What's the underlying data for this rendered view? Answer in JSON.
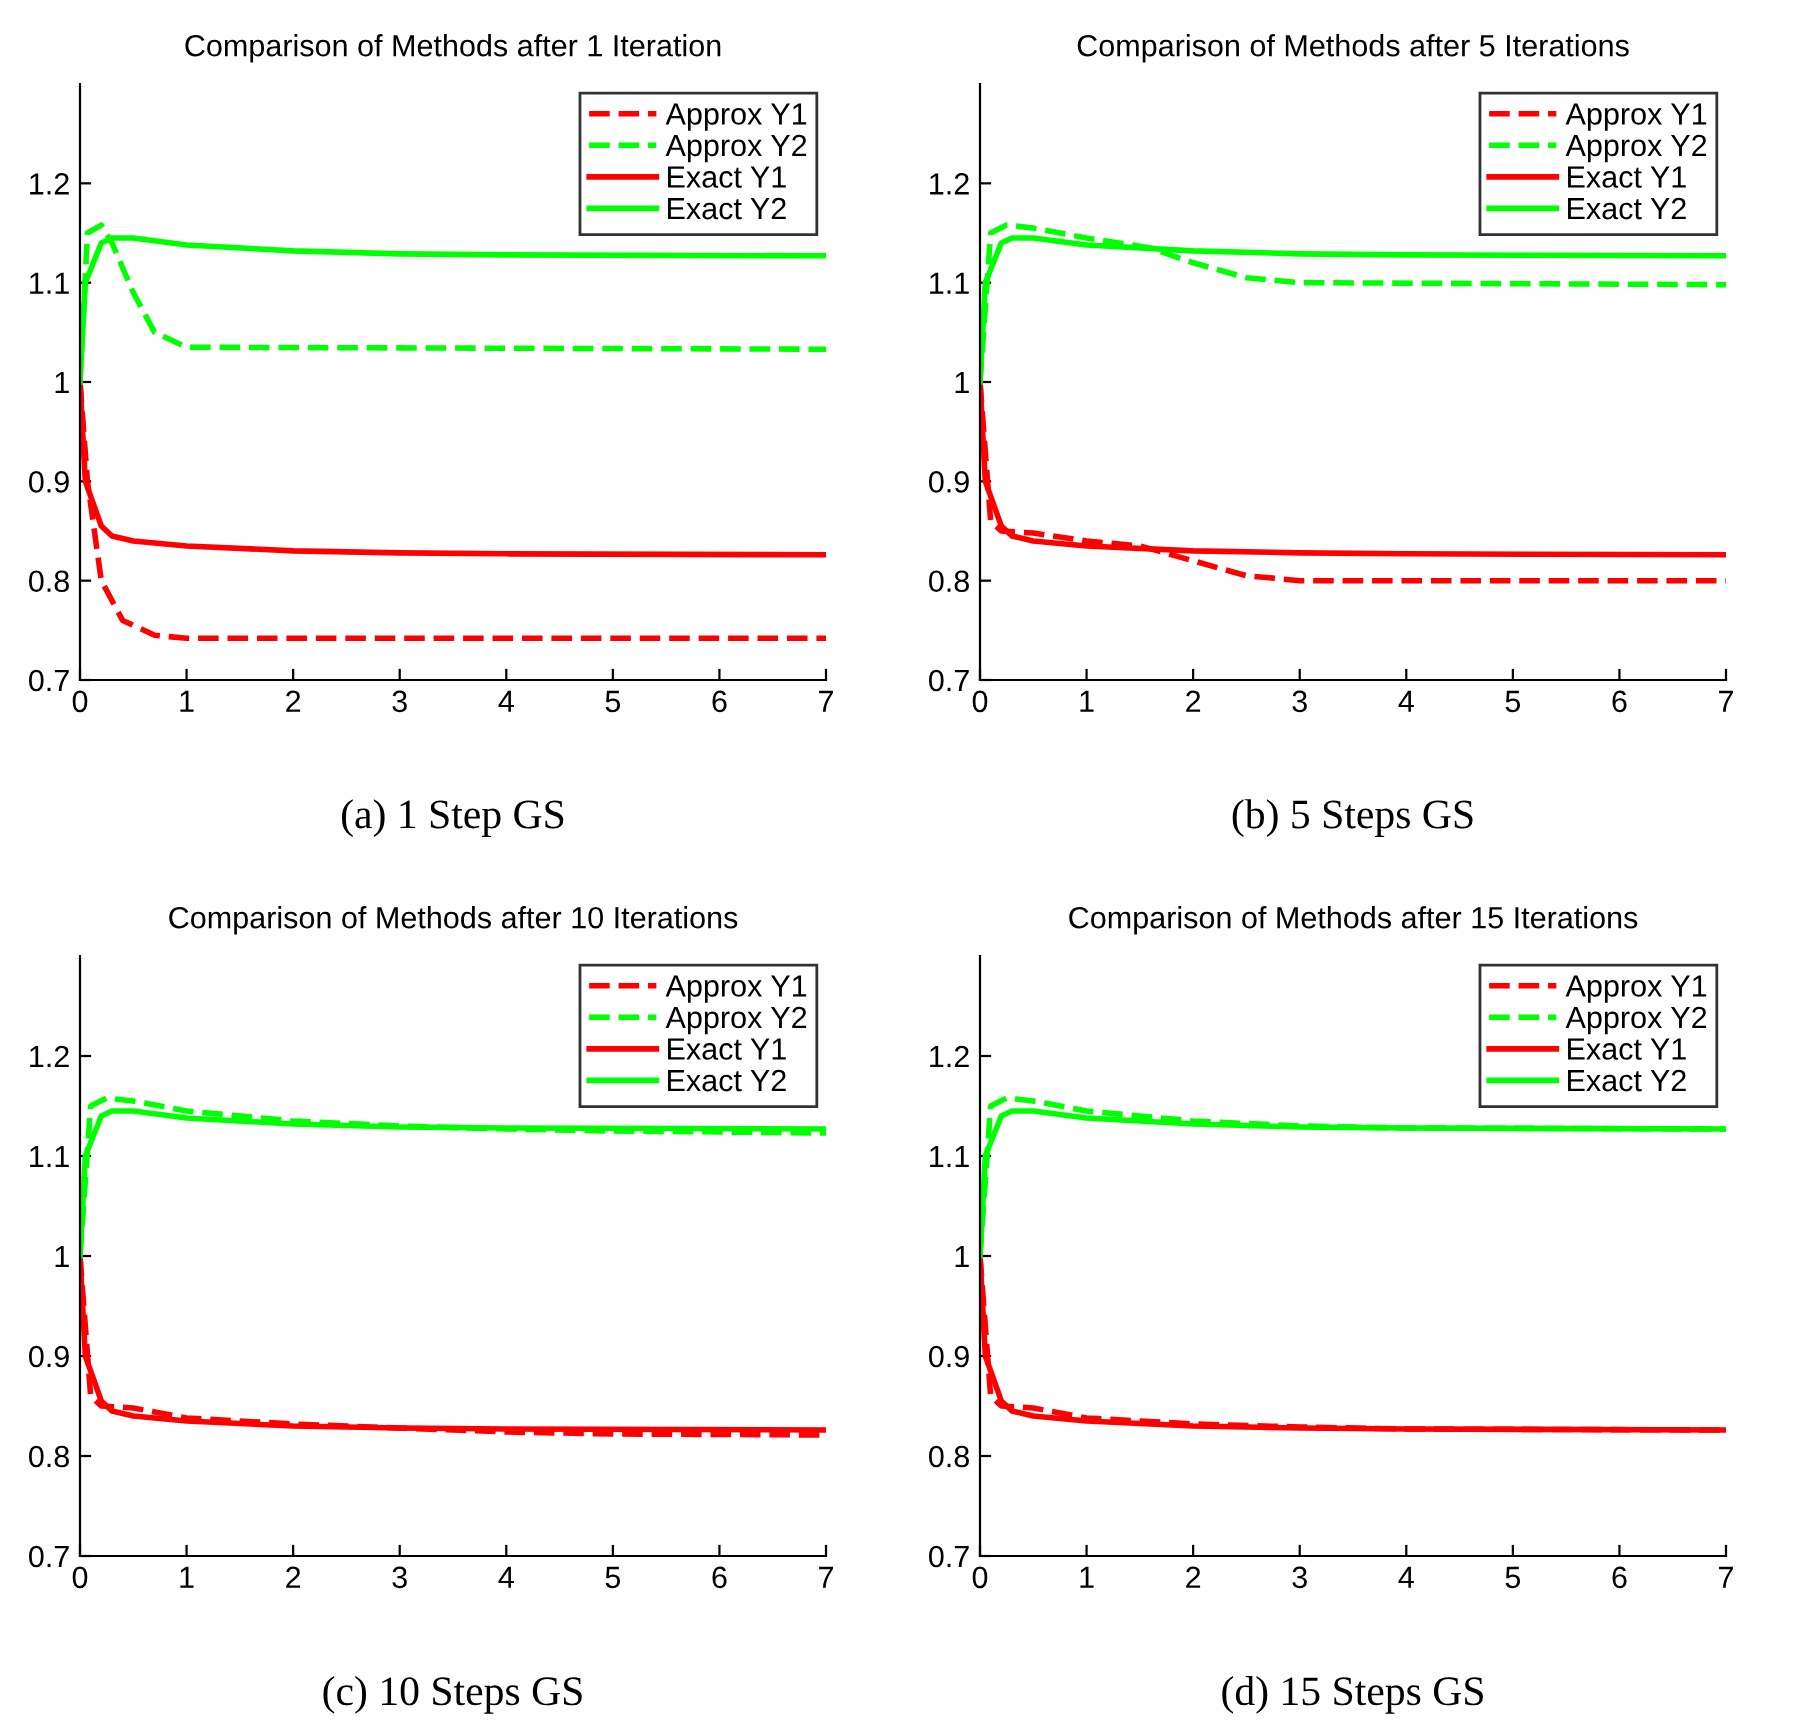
{
  "chart_data": [
    {
      "type": "line",
      "title": "Comparison of Methods after 1 Iteration",
      "annotations": [
        "(a) 1 Step GS"
      ],
      "xlim": [
        0,
        7
      ],
      "ylim": [
        0.7,
        1.3
      ],
      "xticks": [
        0,
        1,
        2,
        3,
        4,
        5,
        6,
        7
      ],
      "yticks": [
        0.7,
        0.8,
        0.9,
        1,
        1.1,
        1.2
      ],
      "legend": "top right",
      "grid": false,
      "series": [
        {
          "name": "Approx Y1",
          "color": "#ff0000",
          "line_style": "dashed",
          "x": [
            0,
            0.07,
            0.2,
            0.4,
            0.7,
            1,
            7
          ],
          "values": [
            1.0,
            0.9,
            0.8,
            0.76,
            0.745,
            0.742,
            0.742
          ]
        },
        {
          "name": "Approx Y2",
          "color": "#00ff00",
          "line_style": "dashed",
          "x": [
            0,
            0.07,
            0.2,
            0.3,
            0.5,
            0.7,
            1,
            7
          ],
          "values": [
            1.0,
            1.15,
            1.158,
            1.14,
            1.09,
            1.05,
            1.035,
            1.033
          ]
        },
        {
          "name": "Exact Y1",
          "color": "#ff0000",
          "line_style": "solid",
          "x": [
            0,
            0.05,
            0.2,
            0.3,
            0.5,
            1,
            2,
            3,
            4,
            7
          ],
          "values": [
            1.0,
            0.9,
            0.855,
            0.845,
            0.84,
            0.835,
            0.83,
            0.828,
            0.827,
            0.826
          ]
        },
        {
          "name": "Exact Y2",
          "color": "#00ff00",
          "line_style": "solid",
          "x": [
            0,
            0.05,
            0.2,
            0.3,
            0.5,
            1,
            2,
            3,
            4,
            7
          ],
          "values": [
            1.0,
            1.1,
            1.14,
            1.145,
            1.145,
            1.138,
            1.132,
            1.129,
            1.128,
            1.127
          ]
        }
      ]
    },
    {
      "type": "line",
      "title": "Comparison of Methods after 5 Iterations",
      "annotations": [
        "(b) 5 Steps GS"
      ],
      "xlim": [
        0,
        7
      ],
      "ylim": [
        0.7,
        1.3
      ],
      "xticks": [
        0,
        1,
        2,
        3,
        4,
        5,
        6,
        7
      ],
      "yticks": [
        0.7,
        0.8,
        0.9,
        1,
        1.1,
        1.2
      ],
      "legend": "top right",
      "grid": false,
      "series": [
        {
          "name": "Approx Y1",
          "color": "#ff0000",
          "line_style": "dashed",
          "x": [
            0,
            0.1,
            0.2,
            0.5,
            1,
            1.5,
            2,
            2.5,
            3,
            7
          ],
          "values": [
            1.0,
            0.86,
            0.85,
            0.848,
            0.84,
            0.835,
            0.82,
            0.805,
            0.8,
            0.8
          ]
        },
        {
          "name": "Approx Y2",
          "color": "#00ff00",
          "line_style": "dashed",
          "x": [
            0,
            0.1,
            0.25,
            0.5,
            1,
            1.6,
            2,
            2.5,
            3,
            7
          ],
          "values": [
            1.0,
            1.15,
            1.158,
            1.155,
            1.145,
            1.135,
            1.12,
            1.105,
            1.1,
            1.098
          ]
        },
        {
          "name": "Exact Y1",
          "color": "#ff0000",
          "line_style": "solid",
          "x": [
            0,
            0.05,
            0.2,
            0.3,
            0.5,
            1,
            2,
            3,
            4,
            7
          ],
          "values": [
            1.0,
            0.9,
            0.855,
            0.845,
            0.84,
            0.835,
            0.83,
            0.828,
            0.827,
            0.826
          ]
        },
        {
          "name": "Exact Y2",
          "color": "#00ff00",
          "line_style": "solid",
          "x": [
            0,
            0.05,
            0.2,
            0.3,
            0.5,
            1,
            2,
            3,
            4,
            7
          ],
          "values": [
            1.0,
            1.1,
            1.14,
            1.145,
            1.145,
            1.138,
            1.132,
            1.129,
            1.128,
            1.127
          ]
        }
      ]
    },
    {
      "type": "line",
      "title": "Comparison of Methods after 10 Iterations",
      "annotations": [
        "(c) 10 Steps GS"
      ],
      "xlim": [
        0,
        7
      ],
      "ylim": [
        0.7,
        1.3
      ],
      "xticks": [
        0,
        1,
        2,
        3,
        4,
        5,
        6,
        7
      ],
      "yticks": [
        0.7,
        0.8,
        0.9,
        1,
        1.1,
        1.2
      ],
      "legend": "top right",
      "grid": false,
      "series": [
        {
          "name": "Approx Y1",
          "color": "#ff0000",
          "line_style": "dashed",
          "x": [
            0,
            0.1,
            0.2,
            0.5,
            1,
            2,
            3,
            4,
            5,
            7
          ],
          "values": [
            1.0,
            0.86,
            0.85,
            0.848,
            0.838,
            0.832,
            0.828,
            0.824,
            0.822,
            0.821
          ]
        },
        {
          "name": "Approx Y2",
          "color": "#00ff00",
          "line_style": "dashed",
          "x": [
            0,
            0.1,
            0.25,
            0.5,
            1,
            2,
            3,
            4,
            5,
            7
          ],
          "values": [
            1.0,
            1.15,
            1.158,
            1.155,
            1.145,
            1.135,
            1.13,
            1.127,
            1.125,
            1.123
          ]
        },
        {
          "name": "Exact Y1",
          "color": "#ff0000",
          "line_style": "solid",
          "x": [
            0,
            0.05,
            0.2,
            0.3,
            0.5,
            1,
            2,
            3,
            4,
            7
          ],
          "values": [
            1.0,
            0.9,
            0.855,
            0.845,
            0.84,
            0.835,
            0.83,
            0.828,
            0.827,
            0.826
          ]
        },
        {
          "name": "Exact Y2",
          "color": "#00ff00",
          "line_style": "solid",
          "x": [
            0,
            0.05,
            0.2,
            0.3,
            0.5,
            1,
            2,
            3,
            4,
            7
          ],
          "values": [
            1.0,
            1.1,
            1.14,
            1.145,
            1.145,
            1.138,
            1.132,
            1.129,
            1.128,
            1.127
          ]
        }
      ]
    },
    {
      "type": "line",
      "title": "Comparison of Methods after 15 Iterations",
      "annotations": [
        "(d) 15 Steps GS"
      ],
      "xlim": [
        0,
        7
      ],
      "ylim": [
        0.7,
        1.3
      ],
      "xticks": [
        0,
        1,
        2,
        3,
        4,
        5,
        6,
        7
      ],
      "yticks": [
        0.7,
        0.8,
        0.9,
        1,
        1.1,
        1.2
      ],
      "legend": "top right",
      "grid": false,
      "series": [
        {
          "name": "Approx Y1",
          "color": "#ff0000",
          "line_style": "dashed",
          "x": [
            0,
            0.1,
            0.2,
            0.5,
            1,
            2,
            3,
            4,
            7
          ],
          "values": [
            1.0,
            0.86,
            0.85,
            0.848,
            0.838,
            0.832,
            0.829,
            0.827,
            0.826
          ]
        },
        {
          "name": "Approx Y2",
          "color": "#00ff00",
          "line_style": "dashed",
          "x": [
            0,
            0.1,
            0.25,
            0.5,
            1,
            2,
            3,
            4,
            7
          ],
          "values": [
            1.0,
            1.15,
            1.158,
            1.155,
            1.145,
            1.135,
            1.13,
            1.128,
            1.127
          ]
        },
        {
          "name": "Exact Y1",
          "color": "#ff0000",
          "line_style": "solid",
          "x": [
            0,
            0.05,
            0.2,
            0.3,
            0.5,
            1,
            2,
            3,
            4,
            7
          ],
          "values": [
            1.0,
            0.9,
            0.855,
            0.845,
            0.84,
            0.835,
            0.83,
            0.828,
            0.827,
            0.826
          ]
        },
        {
          "name": "Exact Y2",
          "color": "#00ff00",
          "line_style": "solid",
          "x": [
            0,
            0.05,
            0.2,
            0.3,
            0.5,
            1,
            2,
            3,
            4,
            7
          ],
          "values": [
            1.0,
            1.1,
            1.14,
            1.145,
            1.145,
            1.138,
            1.132,
            1.129,
            1.128,
            1.127
          ]
        }
      ]
    }
  ]
}
